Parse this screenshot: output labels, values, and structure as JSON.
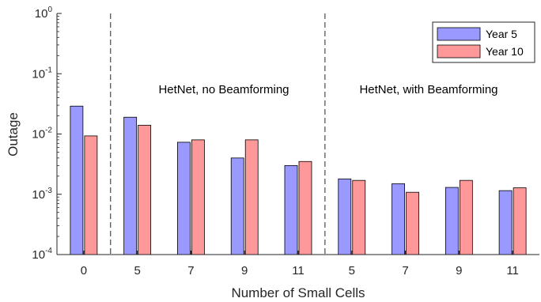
{
  "chart_data": {
    "type": "bar",
    "xlabel": "Number of Small Cells",
    "ylabel": "Outage",
    "yscale": "log",
    "ylim": [
      0.0001,
      1
    ],
    "yticks": [
      {
        "base": "10",
        "exp": "-4",
        "value": 0.0001
      },
      {
        "base": "10",
        "exp": "-3",
        "value": 0.001
      },
      {
        "base": "10",
        "exp": "-2",
        "value": 0.01
      },
      {
        "base": "10",
        "exp": "-1",
        "value": 0.1
      },
      {
        "base": "10",
        "exp": "0",
        "value": 1
      }
    ],
    "categories": [
      "0",
      "5",
      "7",
      "9",
      "11",
      "5",
      "7",
      "9",
      "11"
    ],
    "series": [
      {
        "name": "Year 5",
        "color": "#9999ff",
        "values": [
          0.029,
          0.019,
          0.0073,
          0.004,
          0.003,
          0.0018,
          0.0015,
          0.0013,
          0.00115
        ]
      },
      {
        "name": "Year 10",
        "color": "#ff9999",
        "values": [
          0.0093,
          0.014,
          0.008,
          0.008,
          0.0035,
          0.0017,
          0.00108,
          0.0017,
          0.00128
        ]
      }
    ],
    "annotations": [
      "HetNet, no Beamforming",
      "HetNet, with Beamforming"
    ],
    "legend_position": "top-right",
    "grid": false
  }
}
